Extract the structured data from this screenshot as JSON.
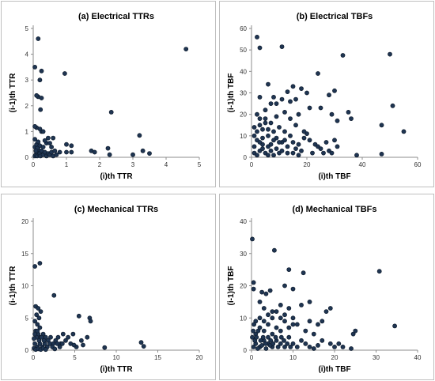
{
  "chart_data": [
    {
      "type": "scatter",
      "title": "(a) Electrical TTRs",
      "xlabel": "(i)th TTR",
      "ylabel": "(i-1)th TTR",
      "xlim": [
        0,
        5
      ],
      "ylim": [
        0,
        5
      ],
      "xticks": [
        0,
        1,
        2,
        3,
        4,
        5
      ],
      "yticks": [
        0,
        1,
        2,
        3,
        4,
        5
      ],
      "grid": false,
      "points": [
        [
          0.05,
          0.05
        ],
        [
          0.08,
          0.1
        ],
        [
          0.1,
          0.2
        ],
        [
          0.12,
          0.05
        ],
        [
          0.15,
          0.3
        ],
        [
          0.18,
          0.1
        ],
        [
          0.2,
          0.15
        ],
        [
          0.22,
          0.05
        ],
        [
          0.25,
          0.25
        ],
        [
          0.3,
          0.1
        ],
        [
          0.35,
          0.2
        ],
        [
          0.4,
          0.05
        ],
        [
          0.45,
          0.15
        ],
        [
          0.5,
          0.1
        ],
        [
          0.55,
          0.2
        ],
        [
          0.6,
          0.05
        ],
        [
          0.7,
          0.1
        ],
        [
          0.8,
          0.2
        ],
        [
          0.05,
          0.4
        ],
        [
          0.1,
          0.5
        ],
        [
          0.15,
          0.6
        ],
        [
          0.05,
          0.7
        ],
        [
          0.2,
          0.45
        ],
        [
          0.12,
          0.35
        ],
        [
          0.08,
          0.25
        ],
        [
          0.3,
          0.4
        ],
        [
          0.4,
          0.55
        ],
        [
          0.45,
          0.75
        ],
        [
          0.5,
          0.55
        ],
        [
          0.6,
          0.75
        ],
        [
          0.55,
          0.4
        ],
        [
          0.65,
          0.25
        ],
        [
          0.35,
          0.65
        ],
        [
          0.25,
          1.0
        ],
        [
          0.1,
          1.15
        ],
        [
          0.2,
          1.1
        ],
        [
          0.3,
          1.0
        ],
        [
          0.05,
          1.2
        ],
        [
          0.15,
          2.35
        ],
        [
          0.1,
          2.4
        ],
        [
          0.25,
          2.3
        ],
        [
          0.22,
          1.85
        ],
        [
          0.2,
          3.0
        ],
        [
          0.25,
          3.35
        ],
        [
          0.05,
          3.5
        ],
        [
          0.15,
          4.6
        ],
        [
          0.95,
          3.25
        ],
        [
          1.0,
          0.5
        ],
        [
          1.0,
          0.2
        ],
        [
          1.15,
          0.45
        ],
        [
          1.15,
          0.2
        ],
        [
          1.75,
          0.25
        ],
        [
          1.85,
          0.2
        ],
        [
          2.25,
          0.35
        ],
        [
          2.3,
          0.1
        ],
        [
          2.35,
          1.75
        ],
        [
          3.0,
          0.1
        ],
        [
          3.2,
          0.85
        ],
        [
          3.3,
          0.25
        ],
        [
          3.5,
          0.15
        ],
        [
          4.6,
          4.2
        ]
      ]
    },
    {
      "type": "scatter",
      "title": "(b) Electrical TBFs",
      "xlabel": "(i)th TBF",
      "ylabel": "(i-1)th TBF",
      "xlim": [
        0,
        60
      ],
      "ylim": [
        0,
        60
      ],
      "xticks": [
        0,
        20,
        40,
        60
      ],
      "yticks": [
        0,
        10,
        20,
        30,
        40,
        50,
        60
      ],
      "grid": false,
      "points": [
        [
          2,
          56
        ],
        [
          3,
          51
        ],
        [
          11,
          51.5
        ],
        [
          33,
          47.5
        ],
        [
          50,
          48
        ],
        [
          24,
          39
        ],
        [
          18,
          32
        ],
        [
          20,
          30
        ],
        [
          15,
          33
        ],
        [
          13,
          30.5
        ],
        [
          14,
          26
        ],
        [
          8,
          28
        ],
        [
          11,
          27
        ],
        [
          16,
          27
        ],
        [
          3,
          28
        ],
        [
          9,
          25
        ],
        [
          6,
          34
        ],
        [
          5,
          22
        ],
        [
          7,
          25
        ],
        [
          12,
          21
        ],
        [
          17,
          20
        ],
        [
          21,
          23
        ],
        [
          25,
          23
        ],
        [
          29,
          20
        ],
        [
          31,
          17
        ],
        [
          35,
          21
        ],
        [
          36,
          18
        ],
        [
          28,
          29
        ],
        [
          30,
          31
        ],
        [
          2,
          20
        ],
        [
          1,
          14
        ],
        [
          3,
          15
        ],
        [
          4,
          13
        ],
        [
          6,
          10
        ],
        [
          5,
          18
        ],
        [
          7,
          16
        ],
        [
          8,
          12
        ],
        [
          9,
          9
        ],
        [
          10,
          14
        ],
        [
          11,
          7
        ],
        [
          12,
          8
        ],
        [
          13,
          5
        ],
        [
          14,
          10
        ],
        [
          15,
          7
        ],
        [
          16,
          4
        ],
        [
          17,
          6
        ],
        [
          18,
          3
        ],
        [
          19,
          9
        ],
        [
          20,
          11
        ],
        [
          21,
          8
        ],
        [
          22,
          2
        ],
        [
          23,
          6
        ],
        [
          24,
          5
        ],
        [
          25,
          4
        ],
        [
          26,
          2
        ],
        [
          27,
          7
        ],
        [
          28,
          3
        ],
        [
          29,
          2
        ],
        [
          30,
          8
        ],
        [
          31,
          5
        ],
        [
          1,
          2
        ],
        [
          1,
          5
        ],
        [
          2,
          8
        ],
        [
          3,
          3
        ],
        [
          2,
          1
        ],
        [
          4,
          6
        ],
        [
          5,
          2
        ],
        [
          6,
          5
        ],
        [
          7,
          3
        ],
        [
          8,
          1
        ],
        [
          9,
          4
        ],
        [
          10,
          2
        ],
        [
          1,
          10
        ],
        [
          2,
          12
        ],
        [
          3,
          18
        ],
        [
          4,
          9
        ],
        [
          5,
          16
        ],
        [
          7,
          6
        ],
        [
          8,
          8
        ],
        [
          10,
          7
        ],
        [
          12,
          12
        ],
        [
          11,
          3
        ],
        [
          13,
          2
        ],
        [
          6,
          1
        ],
        [
          15,
          2
        ],
        [
          17,
          1
        ],
        [
          38,
          1
        ],
        [
          47,
          15
        ],
        [
          47,
          1.5
        ],
        [
          51,
          24
        ],
        [
          55,
          12
        ],
        [
          14,
          18
        ],
        [
          19,
          12
        ],
        [
          6,
          13
        ],
        [
          9,
          19
        ],
        [
          4,
          4
        ],
        [
          3,
          7
        ],
        [
          16,
          15
        ]
      ]
    },
    {
      "type": "scatter",
      "title": "(c) Mechanical TTRs",
      "xlabel": "(i)th TTR",
      "ylabel": "(i-1)th TTR",
      "xlim": [
        0,
        20
      ],
      "ylim": [
        0,
        20
      ],
      "xticks": [
        0,
        5,
        10,
        15,
        20
      ],
      "yticks": [
        0,
        5,
        10,
        15,
        20
      ],
      "grid": false,
      "points": [
        [
          0.2,
          13
        ],
        [
          0.8,
          13.5
        ],
        [
          2.5,
          8.5
        ],
        [
          0.3,
          6.8
        ],
        [
          0.6,
          6.5
        ],
        [
          0.9,
          6
        ],
        [
          0.4,
          5.5
        ],
        [
          0.7,
          5
        ],
        [
          0.2,
          4.5
        ],
        [
          0.5,
          4
        ],
        [
          0.8,
          3.5
        ],
        [
          0.3,
          3
        ],
        [
          0.6,
          2.5
        ],
        [
          0.9,
          2
        ],
        [
          1.2,
          2.5
        ],
        [
          1.5,
          2
        ],
        [
          1.8,
          1.5
        ],
        [
          2.1,
          2
        ],
        [
          2.4,
          1
        ],
        [
          2.7,
          1.5
        ],
        [
          3,
          2
        ],
        [
          3.3,
          1
        ],
        [
          3.6,
          2.5
        ],
        [
          3.9,
          1.5
        ],
        [
          4.2,
          2
        ],
        [
          4.5,
          1
        ],
        [
          0.2,
          1
        ],
        [
          0.5,
          0.5
        ],
        [
          0.8,
          1
        ],
        [
          1.1,
          0.5
        ],
        [
          1.4,
          1
        ],
        [
          1.7,
          0.5
        ],
        [
          2,
          1
        ],
        [
          2.3,
          0.5
        ],
        [
          2.6,
          0.2
        ],
        [
          2.9,
          1
        ],
        [
          3.2,
          0.5
        ],
        [
          3.5,
          1
        ],
        [
          0.1,
          0.3
        ],
        [
          0.3,
          0.1
        ],
        [
          0.6,
          0.2
        ],
        [
          0.9,
          0.1
        ],
        [
          1.2,
          0.3
        ],
        [
          1.5,
          0.1
        ],
        [
          0.4,
          2
        ],
        [
          0.7,
          1.5
        ],
        [
          1,
          2
        ],
        [
          1.3,
          1.5
        ],
        [
          0.2,
          2.5
        ],
        [
          0.5,
          3
        ],
        [
          0.1,
          1.8
        ],
        [
          4.8,
          2.5
        ],
        [
          5.5,
          5.3
        ],
        [
          6.8,
          5
        ],
        [
          6.9,
          4.5
        ],
        [
          6.5,
          2
        ],
        [
          5.8,
          1.5
        ],
        [
          5.2,
          0.5
        ],
        [
          4.9,
          0.8
        ],
        [
          6,
          0.8
        ],
        [
          8.6,
          0.4
        ],
        [
          13,
          1.2
        ],
        [
          13.3,
          0.6
        ]
      ]
    },
    {
      "type": "scatter",
      "title": "(d) Mechanical TBFs",
      "xlabel": "(i)th TBF",
      "ylabel": "(i-1)th TBF",
      "xlim": [
        0,
        40
      ],
      "ylim": [
        0,
        40
      ],
      "xticks": [
        0,
        10,
        20,
        30,
        40
      ],
      "yticks": [
        0,
        10,
        20,
        30,
        40
      ],
      "grid": false,
      "points": [
        [
          0.2,
          34.5
        ],
        [
          5.5,
          31
        ],
        [
          30.8,
          24.5
        ],
        [
          12.5,
          24
        ],
        [
          9,
          25
        ],
        [
          0.5,
          21
        ],
        [
          8,
          20
        ],
        [
          0.5,
          19
        ],
        [
          2.5,
          18
        ],
        [
          3.5,
          17.5
        ],
        [
          4.5,
          18.5
        ],
        [
          2,
          15
        ],
        [
          3,
          13
        ],
        [
          5,
          12
        ],
        [
          7,
          14
        ],
        [
          8,
          11
        ],
        [
          9,
          13
        ],
        [
          10,
          10
        ],
        [
          11,
          8
        ],
        [
          12,
          14
        ],
        [
          13,
          6
        ],
        [
          14,
          9
        ],
        [
          15,
          5
        ],
        [
          16,
          8
        ],
        [
          17,
          3
        ],
        [
          18,
          12
        ],
        [
          19,
          2
        ],
        [
          20,
          1
        ],
        [
          21,
          2
        ],
        [
          22,
          1
        ],
        [
          24,
          0.5
        ],
        [
          24.5,
          5
        ],
        [
          25,
          6
        ],
        [
          34.5,
          7.5
        ],
        [
          1,
          2
        ],
        [
          2,
          1
        ],
        [
          3,
          3
        ],
        [
          4,
          2
        ],
        [
          5,
          1
        ],
        [
          6,
          3
        ],
        [
          7,
          2
        ],
        [
          8,
          1
        ],
        [
          9,
          4
        ],
        [
          10,
          2
        ],
        [
          11,
          1
        ],
        [
          12,
          3
        ],
        [
          13,
          2
        ],
        [
          14,
          1
        ],
        [
          1,
          5
        ],
        [
          2,
          7
        ],
        [
          3,
          6
        ],
        [
          4,
          8
        ],
        [
          5,
          5
        ],
        [
          6,
          7
        ],
        [
          7,
          6
        ],
        [
          8,
          9
        ],
        [
          9,
          7
        ],
        [
          10,
          8
        ],
        [
          1,
          9
        ],
        [
          2,
          10
        ],
        [
          3,
          9
        ],
        [
          4,
          11
        ],
        [
          5,
          10
        ],
        [
          6,
          12
        ],
        [
          7,
          10
        ],
        [
          0.5,
          1
        ],
        [
          1.5,
          0.5
        ],
        [
          2.5,
          1.5
        ],
        [
          3.5,
          0.5
        ],
        [
          4.5,
          1.5
        ],
        [
          0.2,
          4
        ],
        [
          0.4,
          6
        ],
        [
          0.6,
          8
        ],
        [
          0.8,
          3
        ],
        [
          1.2,
          4
        ],
        [
          1.6,
          6
        ],
        [
          2.2,
          3
        ],
        [
          2.8,
          4
        ],
        [
          3.4,
          2
        ],
        [
          4,
          4
        ],
        [
          4.6,
          3
        ],
        [
          5.2,
          2
        ],
        [
          5.8,
          4
        ],
        [
          6.4,
          1
        ],
        [
          7.2,
          4
        ],
        [
          7.8,
          3
        ],
        [
          8.6,
          2
        ],
        [
          9.4,
          1
        ],
        [
          15,
          0.5
        ],
        [
          16,
          1.5
        ],
        [
          19,
          13
        ],
        [
          17,
          9
        ],
        [
          14,
          15
        ],
        [
          10,
          19
        ]
      ]
    }
  ]
}
